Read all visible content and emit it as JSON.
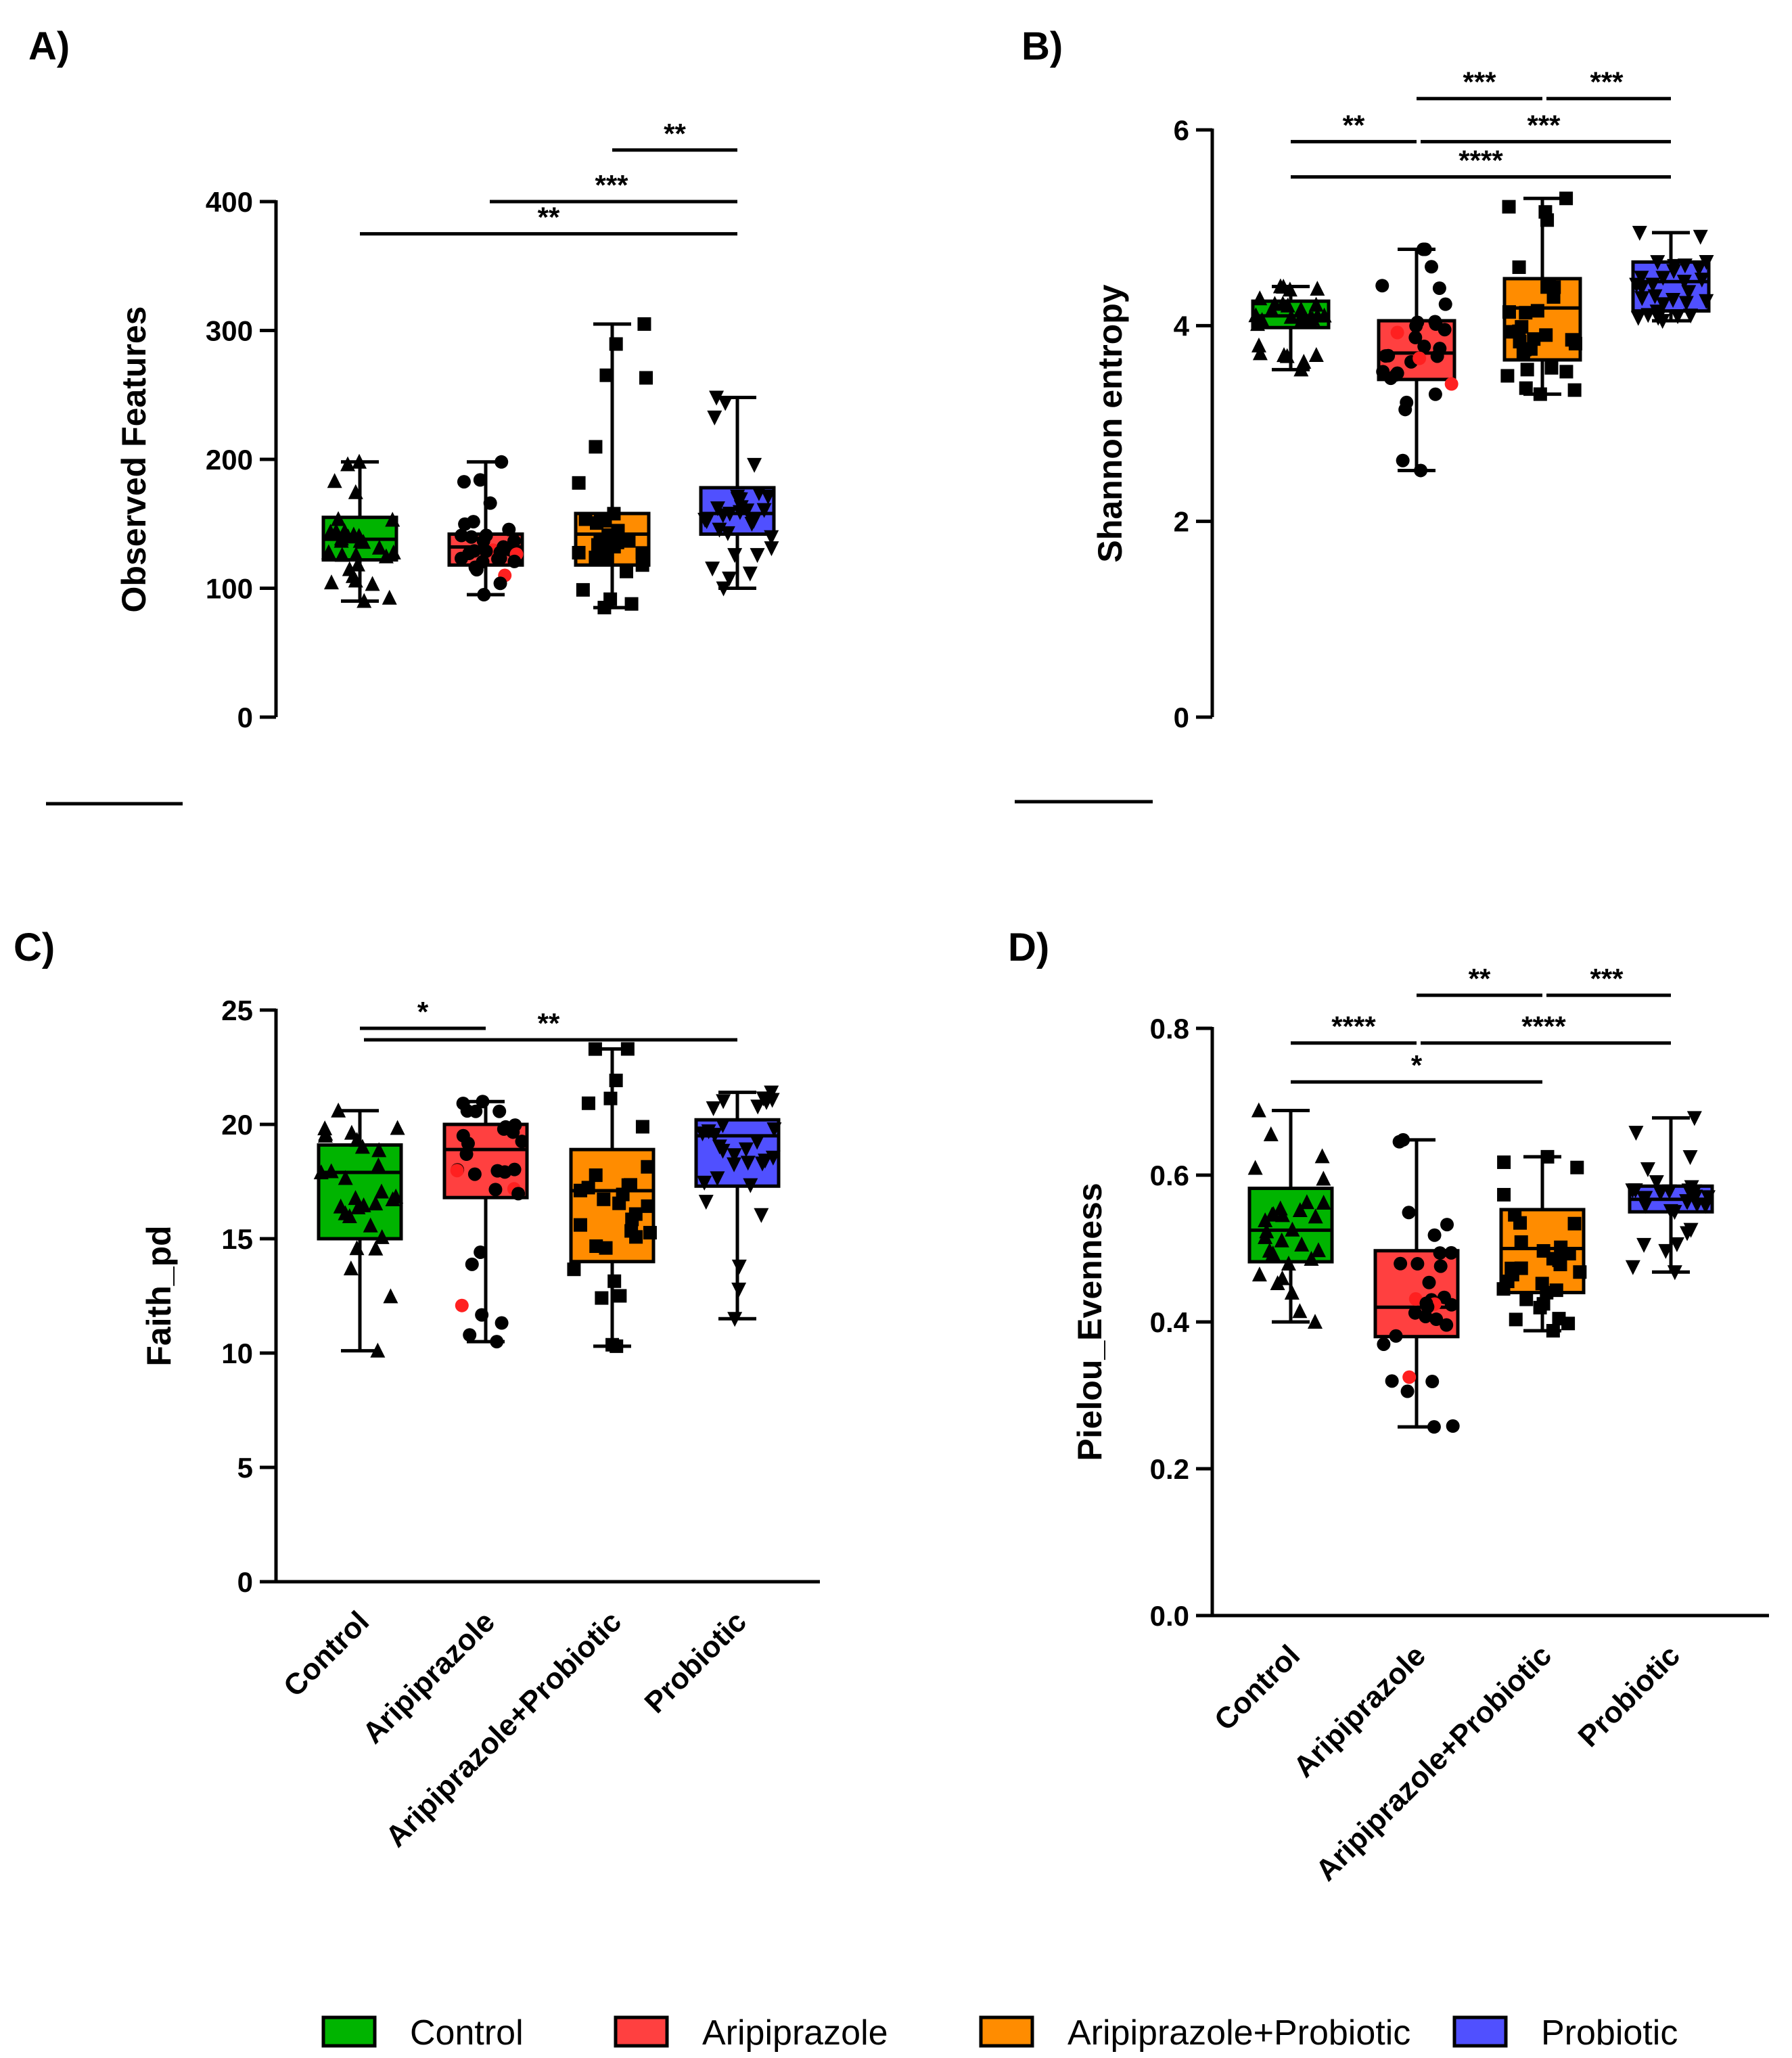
{
  "chart_data": [
    {
      "type": "box",
      "panel_label": "A)",
      "ylabel": "Observed Features",
      "ylim": [
        0,
        400
      ],
      "yticks": [
        "0",
        "100",
        "200",
        "300",
        "400"
      ],
      "categories": [
        "Control",
        "Aripiprazole",
        "Aripiprazole+Probiotic",
        "Probiotic"
      ],
      "show_category_labels": false,
      "boxes": [
        {
          "min": 90,
          "q1": 122,
          "median": 138,
          "q3": 155,
          "max": 198
        },
        {
          "min": 95,
          "q1": 118,
          "median": 132,
          "q3": 142,
          "max": 198
        },
        {
          "min": 85,
          "q1": 118,
          "median": 142,
          "q3": 158,
          "max": 305
        },
        {
          "min": 100,
          "q1": 142,
          "median": 158,
          "q3": 178,
          "max": 248
        }
      ],
      "significance": [
        {
          "from": 2,
          "to": 3,
          "label": "**",
          "y": 440
        },
        {
          "from": 1,
          "to": 3,
          "label": "***",
          "y": 400
        },
        {
          "from": 0,
          "to": 3,
          "label": "**",
          "y": 375
        }
      ]
    },
    {
      "type": "box",
      "panel_label": "B)",
      "ylabel": "Shannon entropy",
      "ylim": [
        0,
        6
      ],
      "yticks": [
        "0",
        "2",
        "4",
        "6"
      ],
      "categories": [
        "Control",
        "Aripiprazole",
        "Aripiprazole+Probiotic",
        "Probiotic"
      ],
      "show_category_labels": false,
      "boxes": [
        {
          "min": 3.55,
          "q1": 3.98,
          "median": 4.1,
          "q3": 4.25,
          "max": 4.4
        },
        {
          "min": 2.52,
          "q1": 3.45,
          "median": 3.72,
          "q3": 4.05,
          "max": 4.78
        },
        {
          "min": 3.3,
          "q1": 3.65,
          "median": 4.18,
          "q3": 4.48,
          "max": 5.3
        },
        {
          "min": 4.05,
          "q1": 4.15,
          "median": 4.45,
          "q3": 4.65,
          "max": 4.95
        }
      ],
      "significance": [
        {
          "from": 1,
          "to": 2,
          "label": "***",
          "y": 6.32
        },
        {
          "from": 2,
          "to": 3,
          "label": "***",
          "y": 6.32
        },
        {
          "from": 0,
          "to": 1,
          "label": "**",
          "y": 5.88
        },
        {
          "from": 1,
          "to": 3,
          "label": "***",
          "y": 5.88
        },
        {
          "from": 0,
          "to": 3,
          "label": "****",
          "y": 5.52
        }
      ]
    },
    {
      "type": "box",
      "panel_label": "C)",
      "ylabel": "Faith_pd",
      "ylim": [
        0,
        25
      ],
      "yticks": [
        "0",
        "5",
        "10",
        "15",
        "20",
        "25"
      ],
      "categories": [
        "Control",
        "Aripiprazole",
        "Aripiprazole+Probiotic",
        "Probiotic"
      ],
      "show_category_labels": true,
      "boxes": [
        {
          "min": 10.1,
          "q1": 15.0,
          "median": 17.9,
          "q3": 19.1,
          "max": 20.6
        },
        {
          "min": 10.5,
          "q1": 16.8,
          "median": 18.9,
          "q3": 20.0,
          "max": 21.0
        },
        {
          "min": 10.3,
          "q1": 14.0,
          "median": 17.1,
          "q3": 18.9,
          "max": 23.3
        },
        {
          "min": 11.5,
          "q1": 17.3,
          "median": 19.5,
          "q3": 20.2,
          "max": 21.4
        }
      ],
      "significance": [
        {
          "from": 0,
          "to": 1,
          "label": "*",
          "y": 24.2
        },
        {
          "from": 0,
          "to": 3,
          "label": "**",
          "y": 23.7
        }
      ]
    },
    {
      "type": "box",
      "panel_label": "D)",
      "ylabel": "Pielou_Evenness",
      "ylim": [
        0,
        0.8
      ],
      "yticks": [
        "0.0",
        "0.2",
        "0.4",
        "0.6",
        "0.8"
      ],
      "categories": [
        "Control",
        "Aripiprazole",
        "Aripiprazole+Probiotic",
        "Probiotic"
      ],
      "show_category_labels": true,
      "boxes": [
        {
          "min": 0.4,
          "q1": 0.482,
          "median": 0.525,
          "q3": 0.582,
          "max": 0.688
        },
        {
          "min": 0.257,
          "q1": 0.38,
          "median": 0.42,
          "q3": 0.497,
          "max": 0.648
        },
        {
          "min": 0.388,
          "q1": 0.44,
          "median": 0.5,
          "q3": 0.553,
          "max": 0.625
        },
        {
          "min": 0.468,
          "q1": 0.55,
          "median": 0.567,
          "q3": 0.585,
          "max": 0.678
        }
      ],
      "significance": [
        {
          "from": 1,
          "to": 2,
          "label": "**",
          "y": 0.845
        },
        {
          "from": 2,
          "to": 3,
          "label": "***",
          "y": 0.845
        },
        {
          "from": 0,
          "to": 1,
          "label": "****",
          "y": 0.78
        },
        {
          "from": 1,
          "to": 3,
          "label": "****",
          "y": 0.78
        },
        {
          "from": 0,
          "to": 2,
          "label": "*",
          "y": 0.727
        }
      ]
    }
  ],
  "legend": [
    {
      "label": "Control",
      "color": "#00b400"
    },
    {
      "label": "Aripiprazole",
      "color": "#ff4040"
    },
    {
      "label": "Aripiprazole+Probiotic",
      "color": "#ff8c00"
    },
    {
      "label": "Probiotic",
      "color": "#5050ff"
    }
  ],
  "group_colors": [
    "#00b400",
    "#ff4040",
    "#ff8c00",
    "#5050ff"
  ]
}
